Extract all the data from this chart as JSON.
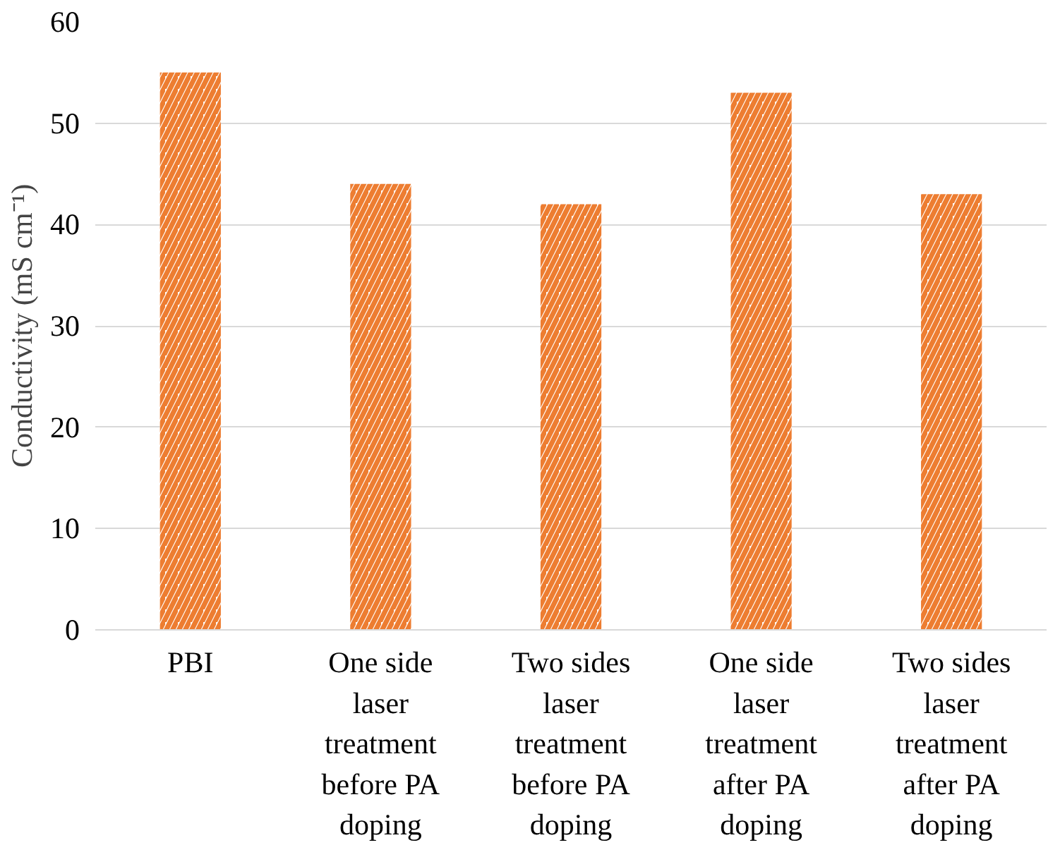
{
  "chart_data": {
    "type": "bar",
    "categories": [
      "PBI",
      "One side laser treatment before PA doping",
      "Two sides laser treatment before PA doping",
      "One side laser treatment after PA doping",
      "Two sides laser treatment after PA doping"
    ],
    "values": [
      55,
      44,
      42,
      53,
      43
    ],
    "color": "#ed7d31",
    "ylabel": "Conductivity (mS cm⁻¹)",
    "ylim": [
      0,
      60
    ],
    "yticks": [
      0,
      10,
      20,
      30,
      40,
      50,
      60
    ],
    "grid": "y"
  }
}
